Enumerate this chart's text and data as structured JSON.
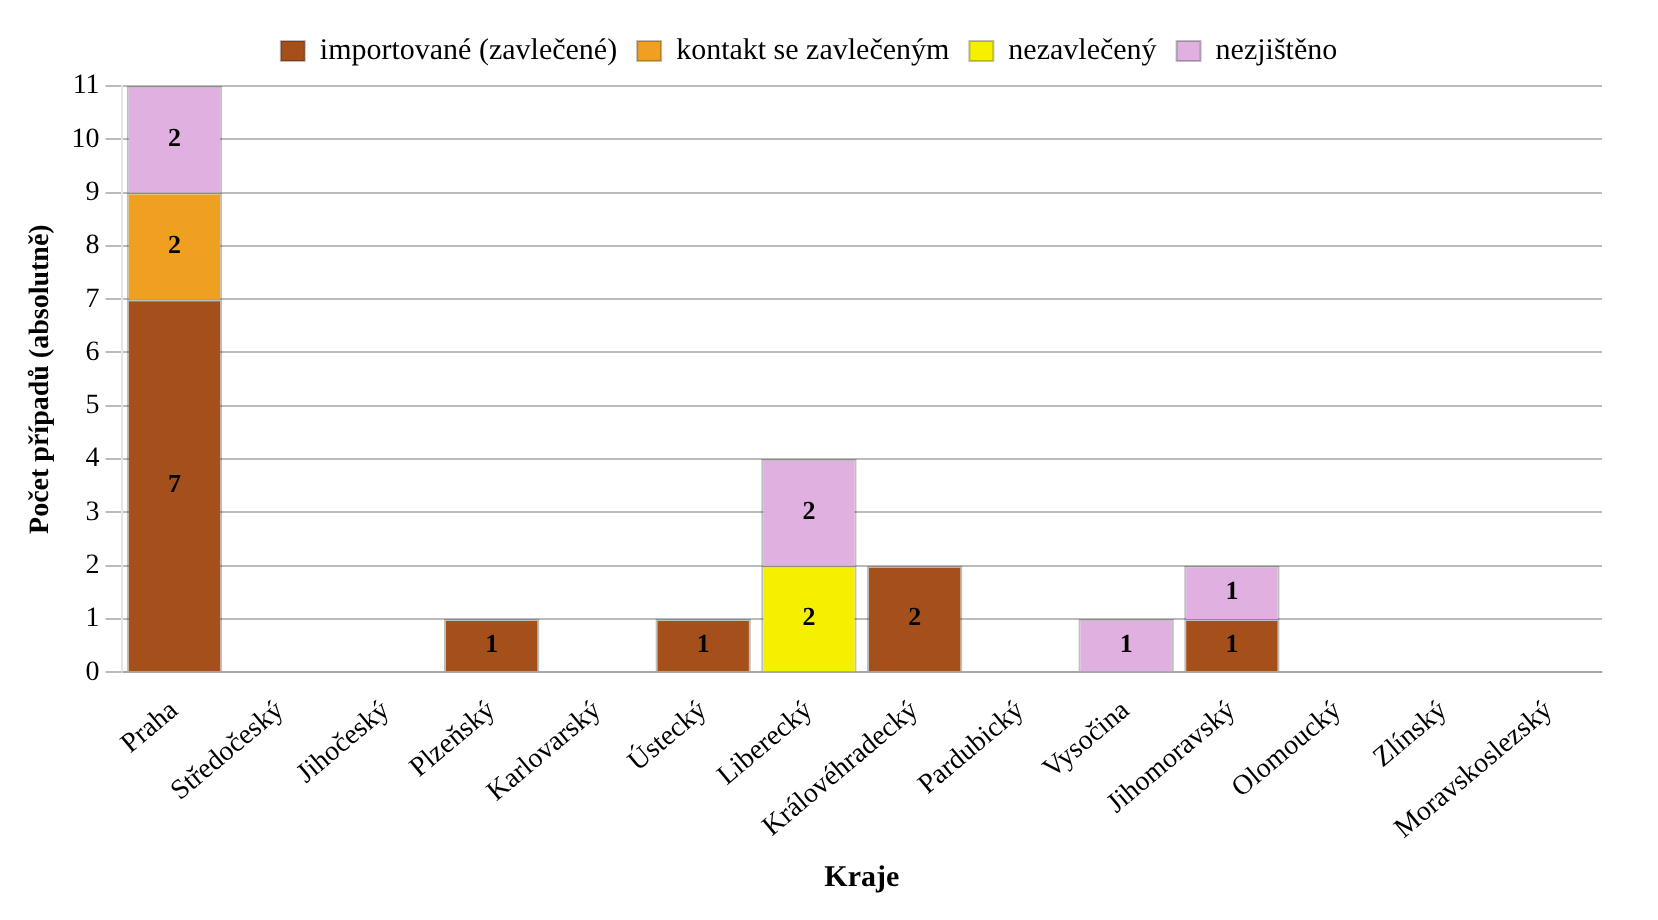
{
  "chart_data": {
    "type": "bar",
    "stacked": true,
    "xlabel": "Kraje",
    "ylabel": "Počet případů (absolutně)",
    "categories": [
      "Praha",
      "Středočeský",
      "Jihočeský",
      "Plzeňský",
      "Karlovarský",
      "Ústecký",
      "Liberecký",
      "Královéhradecký",
      "Pardubický",
      "Vysočina",
      "Jihomoravský",
      "Olomoucký",
      "Zlínský",
      "Moravskoslezský"
    ],
    "series": [
      {
        "name": "importované (zavlečené)",
        "color": "#a5501a",
        "values": [
          7,
          null,
          null,
          1,
          null,
          1,
          null,
          2,
          null,
          null,
          1,
          null,
          null,
          null
        ]
      },
      {
        "name": "kontakt se zavlečeným",
        "color": "#f0a020",
        "values": [
          2,
          null,
          null,
          null,
          null,
          null,
          null,
          null,
          null,
          null,
          null,
          null,
          null,
          null
        ]
      },
      {
        "name": "nezavlečený",
        "color": "#f5f000",
        "values": [
          null,
          null,
          null,
          null,
          null,
          null,
          2,
          null,
          null,
          null,
          null,
          null,
          null,
          null
        ]
      },
      {
        "name": "nezjištěno",
        "color": "#e0b0e0",
        "values": [
          2,
          null,
          null,
          null,
          null,
          null,
          2,
          null,
          null,
          1,
          1,
          null,
          null,
          null
        ]
      }
    ],
    "ylim": [
      0,
      11
    ],
    "yticks": [
      0,
      1,
      2,
      3,
      4,
      5,
      6,
      7,
      8,
      9,
      10,
      11
    ],
    "grid": "y",
    "legend": "top",
    "data_labels": true
  }
}
